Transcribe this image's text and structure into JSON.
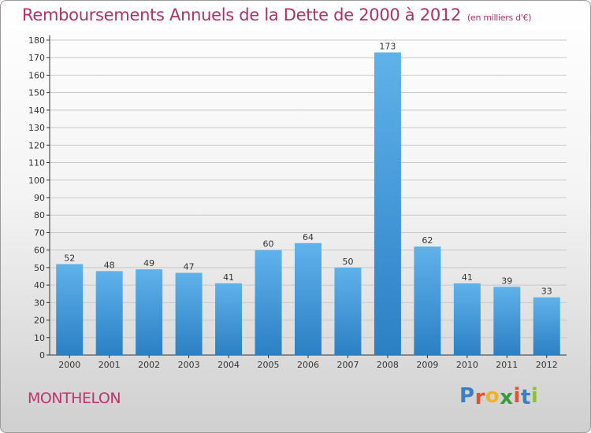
{
  "header": {
    "title": "Remboursements Annuels de la Dette de 2000 à 2012",
    "unit": "(en milliers d'€)"
  },
  "footer": {
    "city": "MONTHELON",
    "logo_letters": [
      "P",
      "r",
      "o",
      "x",
      "i",
      "t",
      "i"
    ]
  },
  "colors": {
    "title": "#b0306a",
    "bar_top": "#5fb2ea",
    "bar_bottom": "#2b80c4",
    "grid": "#c8c8c8",
    "logo": [
      "#3a7fc1",
      "#e3522f",
      "#f0b22a",
      "#3a9a3e",
      "#e3522f",
      "#3a7fc1",
      "#8fbf3a"
    ]
  },
  "chart_data": {
    "type": "bar",
    "categories": [
      "2000",
      "2001",
      "2002",
      "2003",
      "2004",
      "2005",
      "2006",
      "2007",
      "2008",
      "2009",
      "2010",
      "2011",
      "2012"
    ],
    "values": [
      52,
      48,
      49,
      47,
      41,
      60,
      64,
      50,
      173,
      62,
      41,
      39,
      33
    ],
    "ylim": [
      0,
      180
    ],
    "yticks": [
      0,
      10,
      20,
      30,
      40,
      50,
      60,
      70,
      80,
      90,
      100,
      110,
      120,
      130,
      140,
      150,
      160,
      170,
      180
    ],
    "grid": true,
    "data_labels": true
  }
}
